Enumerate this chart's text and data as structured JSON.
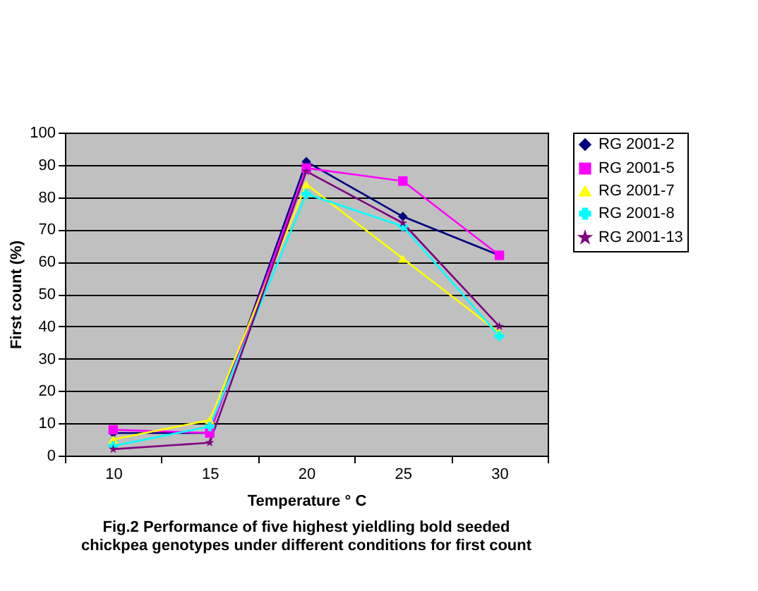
{
  "chart_data": {
    "type": "line",
    "xlabel": "Temperature ° C",
    "ylabel": "First count (%)",
    "categories": [
      "10",
      "15",
      "20",
      "25",
      "30"
    ],
    "series": [
      {
        "name": "RG 2001-2",
        "color": "#000080",
        "marker": "diamond",
        "values": [
          7,
          7,
          91,
          74,
          62
        ]
      },
      {
        "name": "RG 2001-5",
        "color": "#ff00ff",
        "marker": "square",
        "values": [
          8,
          7,
          89,
          85,
          62
        ]
      },
      {
        "name": "RG 2001-7",
        "color": "#ffff00",
        "marker": "triangle",
        "values": [
          5,
          11,
          84,
          61,
          38
        ]
      },
      {
        "name": "RG 2001-8",
        "color": "#00ffff",
        "marker": "cross",
        "values": [
          3,
          9,
          81,
          71,
          37
        ]
      },
      {
        "name": "RG 2001-13",
        "color": "#800080",
        "marker": "star",
        "values": [
          2,
          4,
          88,
          72,
          40
        ]
      }
    ],
    "ylim": [
      0,
      100
    ],
    "yticks": [
      0,
      10,
      20,
      30,
      40,
      50,
      60,
      70,
      80,
      90,
      100
    ],
    "grid": "y",
    "legend": "right",
    "line_style": "solid",
    "annotations": [
      "Fig.2 Performance  of five highest yieldling bold seeded",
      "chickpea genotypes under different conditions for first count"
    ]
  }
}
